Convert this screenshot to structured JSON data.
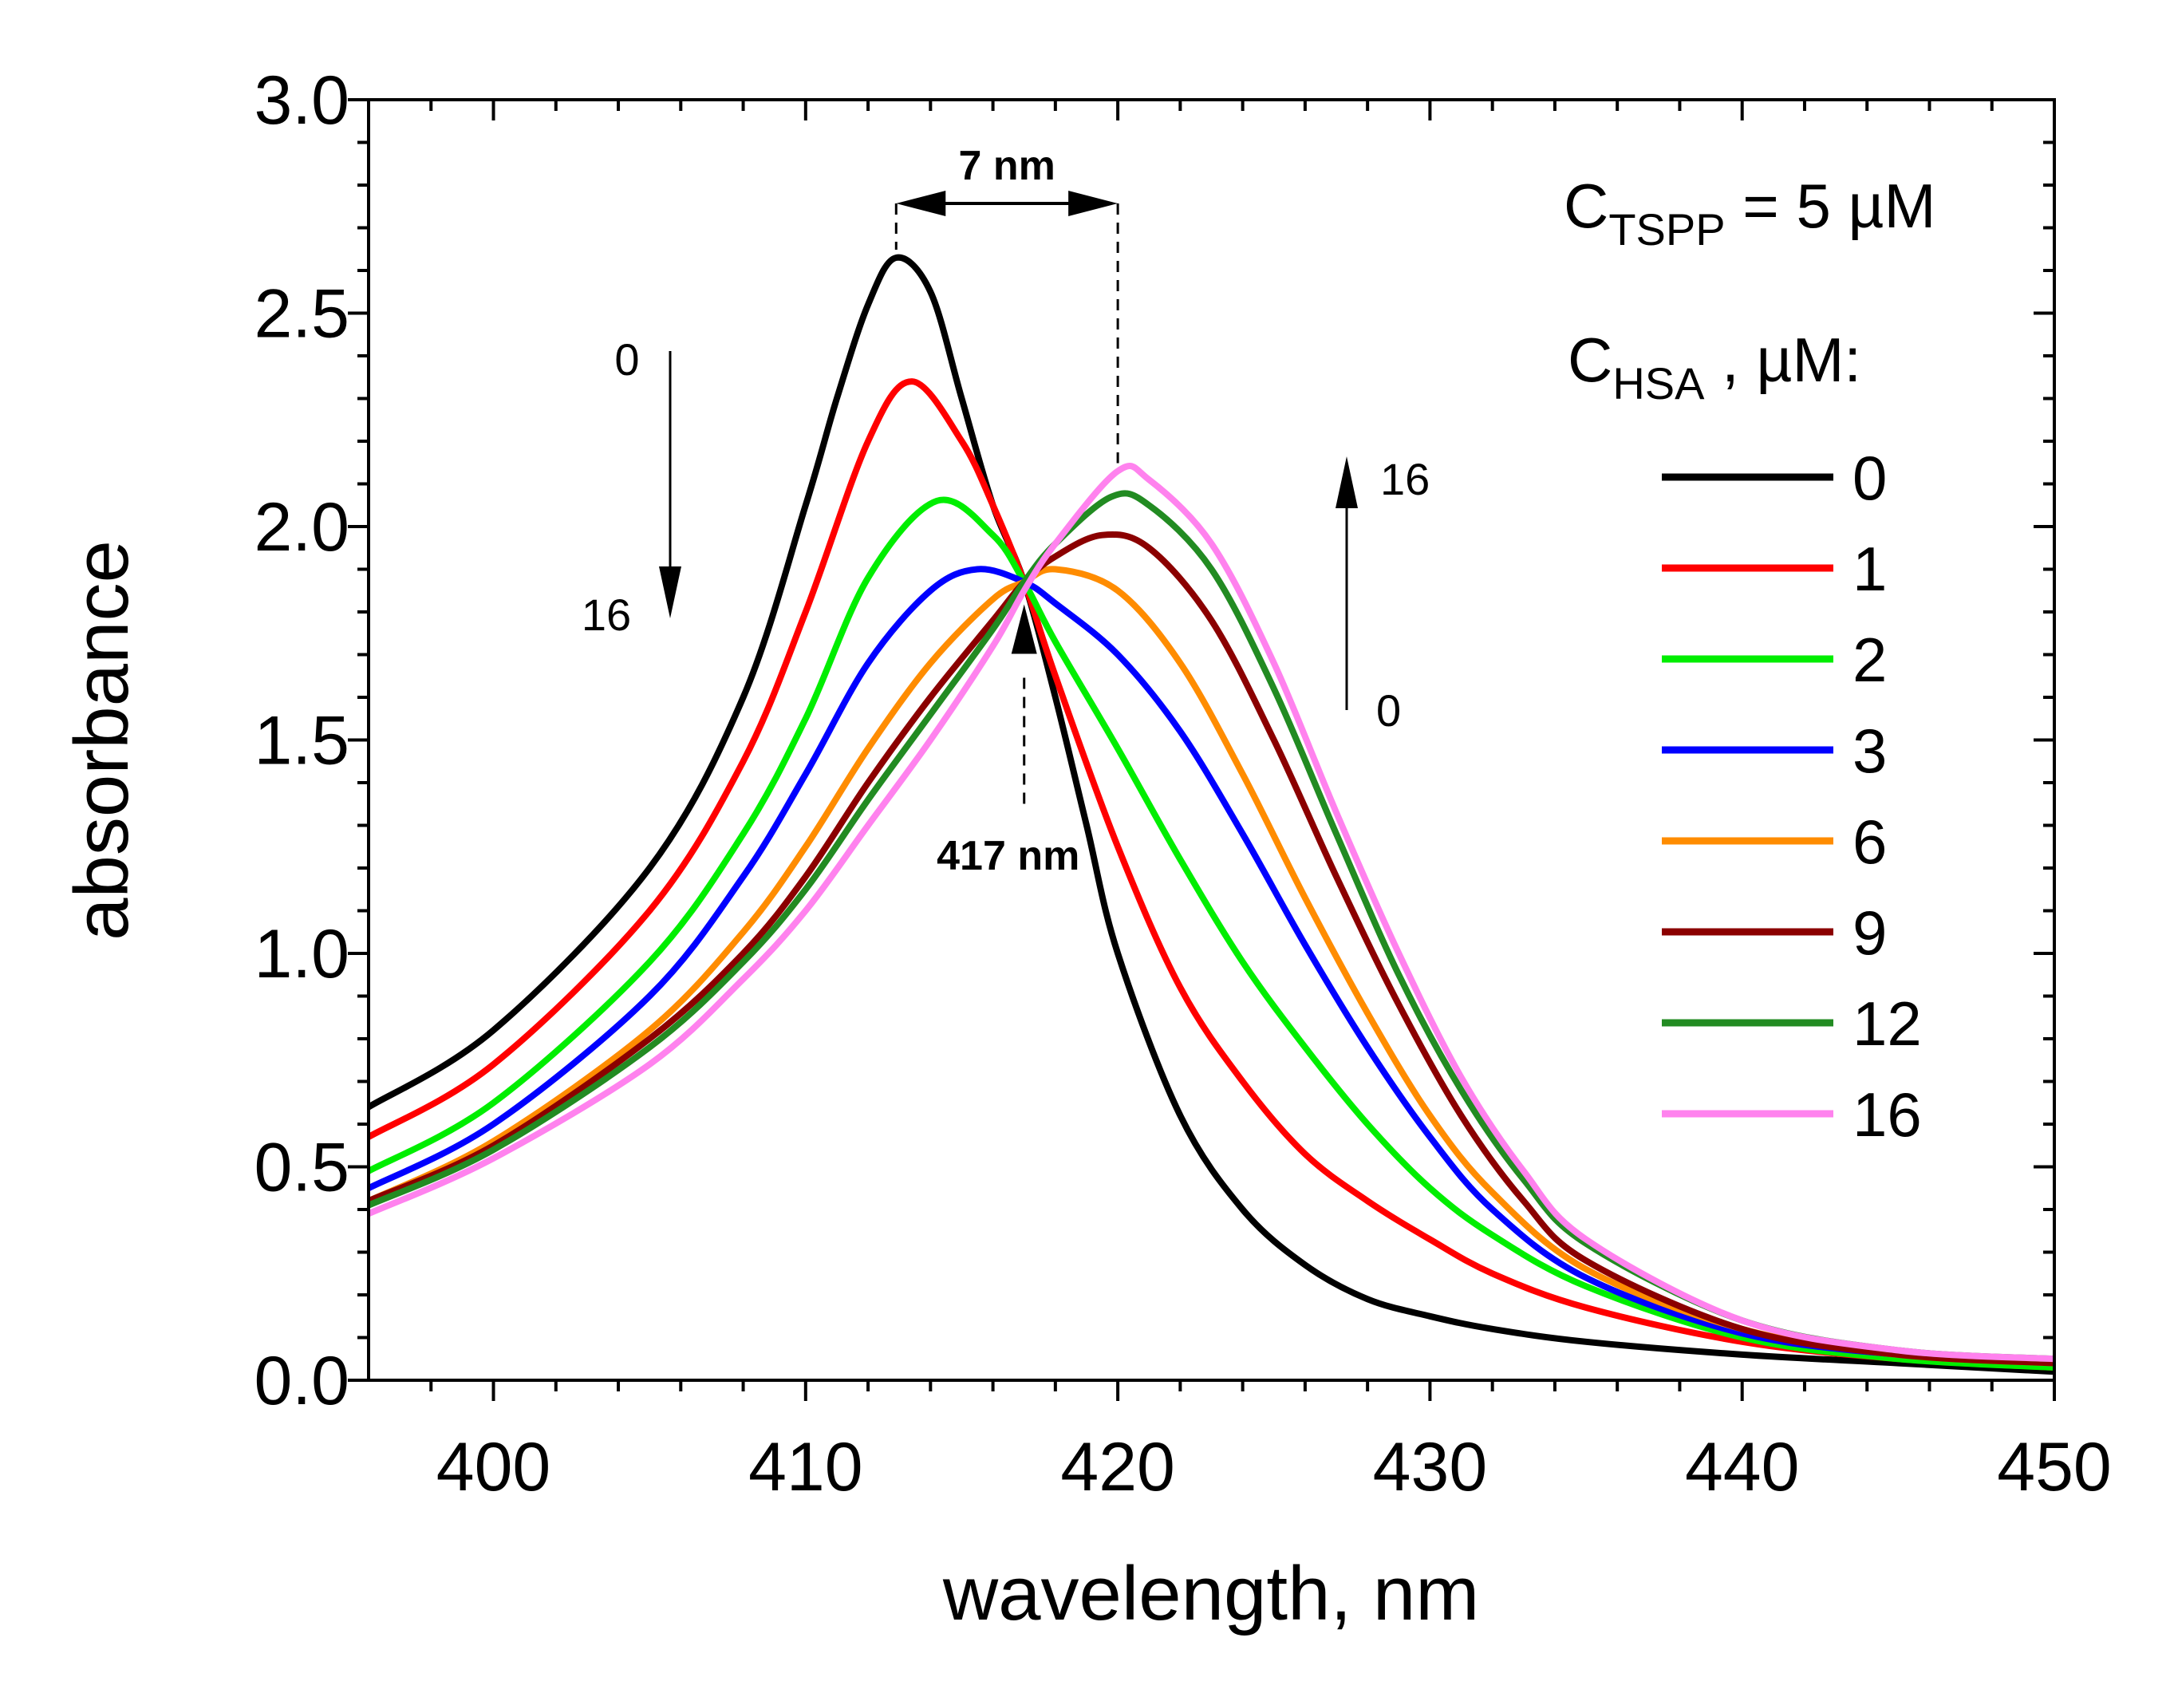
{
  "chart_data": {
    "type": "line",
    "xlabel": "wavelength, nm",
    "ylabel": "absorbance",
    "xlim": [
      396,
      450
    ],
    "ylim": [
      0.0,
      3.0
    ],
    "x_ticks": [
      400,
      410,
      420,
      430,
      440,
      450
    ],
    "x_tick_labels": [
      "400",
      "410",
      "420",
      "430",
      "440",
      "450"
    ],
    "y_ticks": [
      0.0,
      0.5,
      1.0,
      1.5,
      2.0,
      2.5,
      3.0
    ],
    "y_tick_labels": [
      "0.0",
      "0.5",
      "1.0",
      "1.5",
      "2.0",
      "2.5",
      "3.0"
    ],
    "grid": false,
    "legend_position": "right",
    "legend_title": {
      "main": "C",
      "sub": "HSA",
      "rest": " , µM:"
    },
    "concentration_label": {
      "main": "C",
      "sub": "TSPP",
      "rest": " = 5 µM"
    },
    "series": [
      {
        "name": "0",
        "color": "#000000",
        "x": [
          396,
          400,
          405,
          408,
          410,
          411,
          412,
          412.9,
          414,
          415,
          416,
          417,
          418,
          419,
          420,
          422,
          424,
          426,
          428,
          430,
          432,
          435,
          440,
          445,
          450
        ],
        "y": [
          0.64,
          0.82,
          1.2,
          1.6,
          2.05,
          2.3,
          2.52,
          2.63,
          2.55,
          2.3,
          2.05,
          1.87,
          1.6,
          1.3,
          1.0,
          0.62,
          0.4,
          0.27,
          0.19,
          0.15,
          0.12,
          0.09,
          0.06,
          0.04,
          0.02
        ]
      },
      {
        "name": "1",
        "color": "#ff0000",
        "x": [
          396,
          400,
          405,
          408,
          410,
          412,
          413.4,
          415,
          416,
          417,
          418,
          420,
          422,
          424,
          426,
          428,
          430,
          432,
          435,
          440,
          445,
          450
        ],
        "y": [
          0.57,
          0.74,
          1.1,
          1.45,
          1.8,
          2.2,
          2.34,
          2.2,
          2.05,
          1.87,
          1.65,
          1.25,
          0.92,
          0.7,
          0.53,
          0.42,
          0.33,
          0.25,
          0.17,
          0.09,
          0.05,
          0.03
        ]
      },
      {
        "name": "2",
        "color": "#00ee00",
        "x": [
          396,
          400,
          405,
          408,
          410,
          412,
          414.2,
          416,
          417,
          418,
          420,
          422,
          424,
          426,
          428,
          430,
          432,
          435,
          440,
          445,
          450
        ],
        "y": [
          0.49,
          0.65,
          0.98,
          1.28,
          1.55,
          1.88,
          2.06,
          1.98,
          1.87,
          1.73,
          1.48,
          1.22,
          0.98,
          0.78,
          0.6,
          0.45,
          0.34,
          0.22,
          0.1,
          0.05,
          0.03
        ]
      },
      {
        "name": "3",
        "color": "#0000ff",
        "x": [
          396,
          400,
          405,
          408,
          410,
          412,
          414,
          415.5,
          417,
          418,
          420,
          422,
          424,
          426,
          428,
          430,
          432,
          435,
          440,
          445,
          450
        ],
        "y": [
          0.45,
          0.6,
          0.9,
          1.18,
          1.42,
          1.68,
          1.85,
          1.9,
          1.87,
          1.82,
          1.7,
          1.52,
          1.28,
          1.02,
          0.78,
          0.57,
          0.4,
          0.24,
          0.11,
          0.06,
          0.04
        ]
      },
      {
        "name": "6",
        "color": "#ff8c00",
        "x": [
          396,
          400,
          405,
          408,
          410,
          412,
          414,
          416,
          417,
          418,
          420,
          422,
          424,
          426,
          428,
          430,
          432,
          435,
          440,
          445,
          450
        ],
        "y": [
          0.42,
          0.56,
          0.82,
          1.05,
          1.25,
          1.48,
          1.68,
          1.83,
          1.87,
          1.9,
          1.85,
          1.68,
          1.42,
          1.13,
          0.86,
          0.62,
          0.44,
          0.26,
          0.12,
          0.06,
          0.04
        ]
      },
      {
        "name": "9",
        "color": "#8b0000",
        "x": [
          396,
          400,
          405,
          408,
          410,
          412,
          414,
          416,
          417,
          418,
          419.5,
          421,
          423,
          425,
          427,
          429,
          431,
          433,
          435,
          440,
          445,
          450
        ],
        "y": [
          0.42,
          0.55,
          0.8,
          1.0,
          1.18,
          1.4,
          1.6,
          1.78,
          1.87,
          1.93,
          1.98,
          1.95,
          1.78,
          1.5,
          1.18,
          0.88,
          0.62,
          0.42,
          0.28,
          0.12,
          0.06,
          0.04
        ]
      },
      {
        "name": "12",
        "color": "#228b22",
        "x": [
          396,
          400,
          405,
          408,
          410,
          412,
          414,
          416,
          417,
          418,
          419.8,
          421,
          423,
          425,
          427,
          429,
          431,
          433,
          435,
          440,
          445,
          450
        ],
        "y": [
          0.41,
          0.54,
          0.78,
          0.98,
          1.15,
          1.36,
          1.56,
          1.76,
          1.87,
          1.96,
          2.07,
          2.05,
          1.9,
          1.62,
          1.28,
          0.95,
          0.68,
          0.47,
          0.32,
          0.14,
          0.07,
          0.05
        ]
      },
      {
        "name": "16",
        "color": "#ff82ee",
        "x": [
          396,
          400,
          405,
          408,
          410,
          412,
          414,
          416,
          417,
          418,
          420,
          421,
          423,
          425,
          427,
          429,
          431,
          433,
          435,
          440,
          445,
          450
        ],
        "y": [
          0.39,
          0.52,
          0.74,
          0.94,
          1.1,
          1.3,
          1.5,
          1.72,
          1.85,
          1.96,
          2.13,
          2.11,
          1.96,
          1.68,
          1.33,
          1.0,
          0.71,
          0.49,
          0.33,
          0.14,
          0.07,
          0.05
        ]
      }
    ],
    "annotations": {
      "shift_label": "7 nm",
      "isosbestic_label": "417 nm",
      "isosbestic_x": 417,
      "isosbestic_y": 1.87,
      "peak_left_x": 412.9,
      "peak_left_y": 2.63,
      "peak_right_x": 420,
      "peak_right_y": 2.13,
      "arrow_down_top": "0",
      "arrow_down_bottom": "16",
      "arrow_up_top": "16",
      "arrow_up_bottom": "0"
    }
  }
}
